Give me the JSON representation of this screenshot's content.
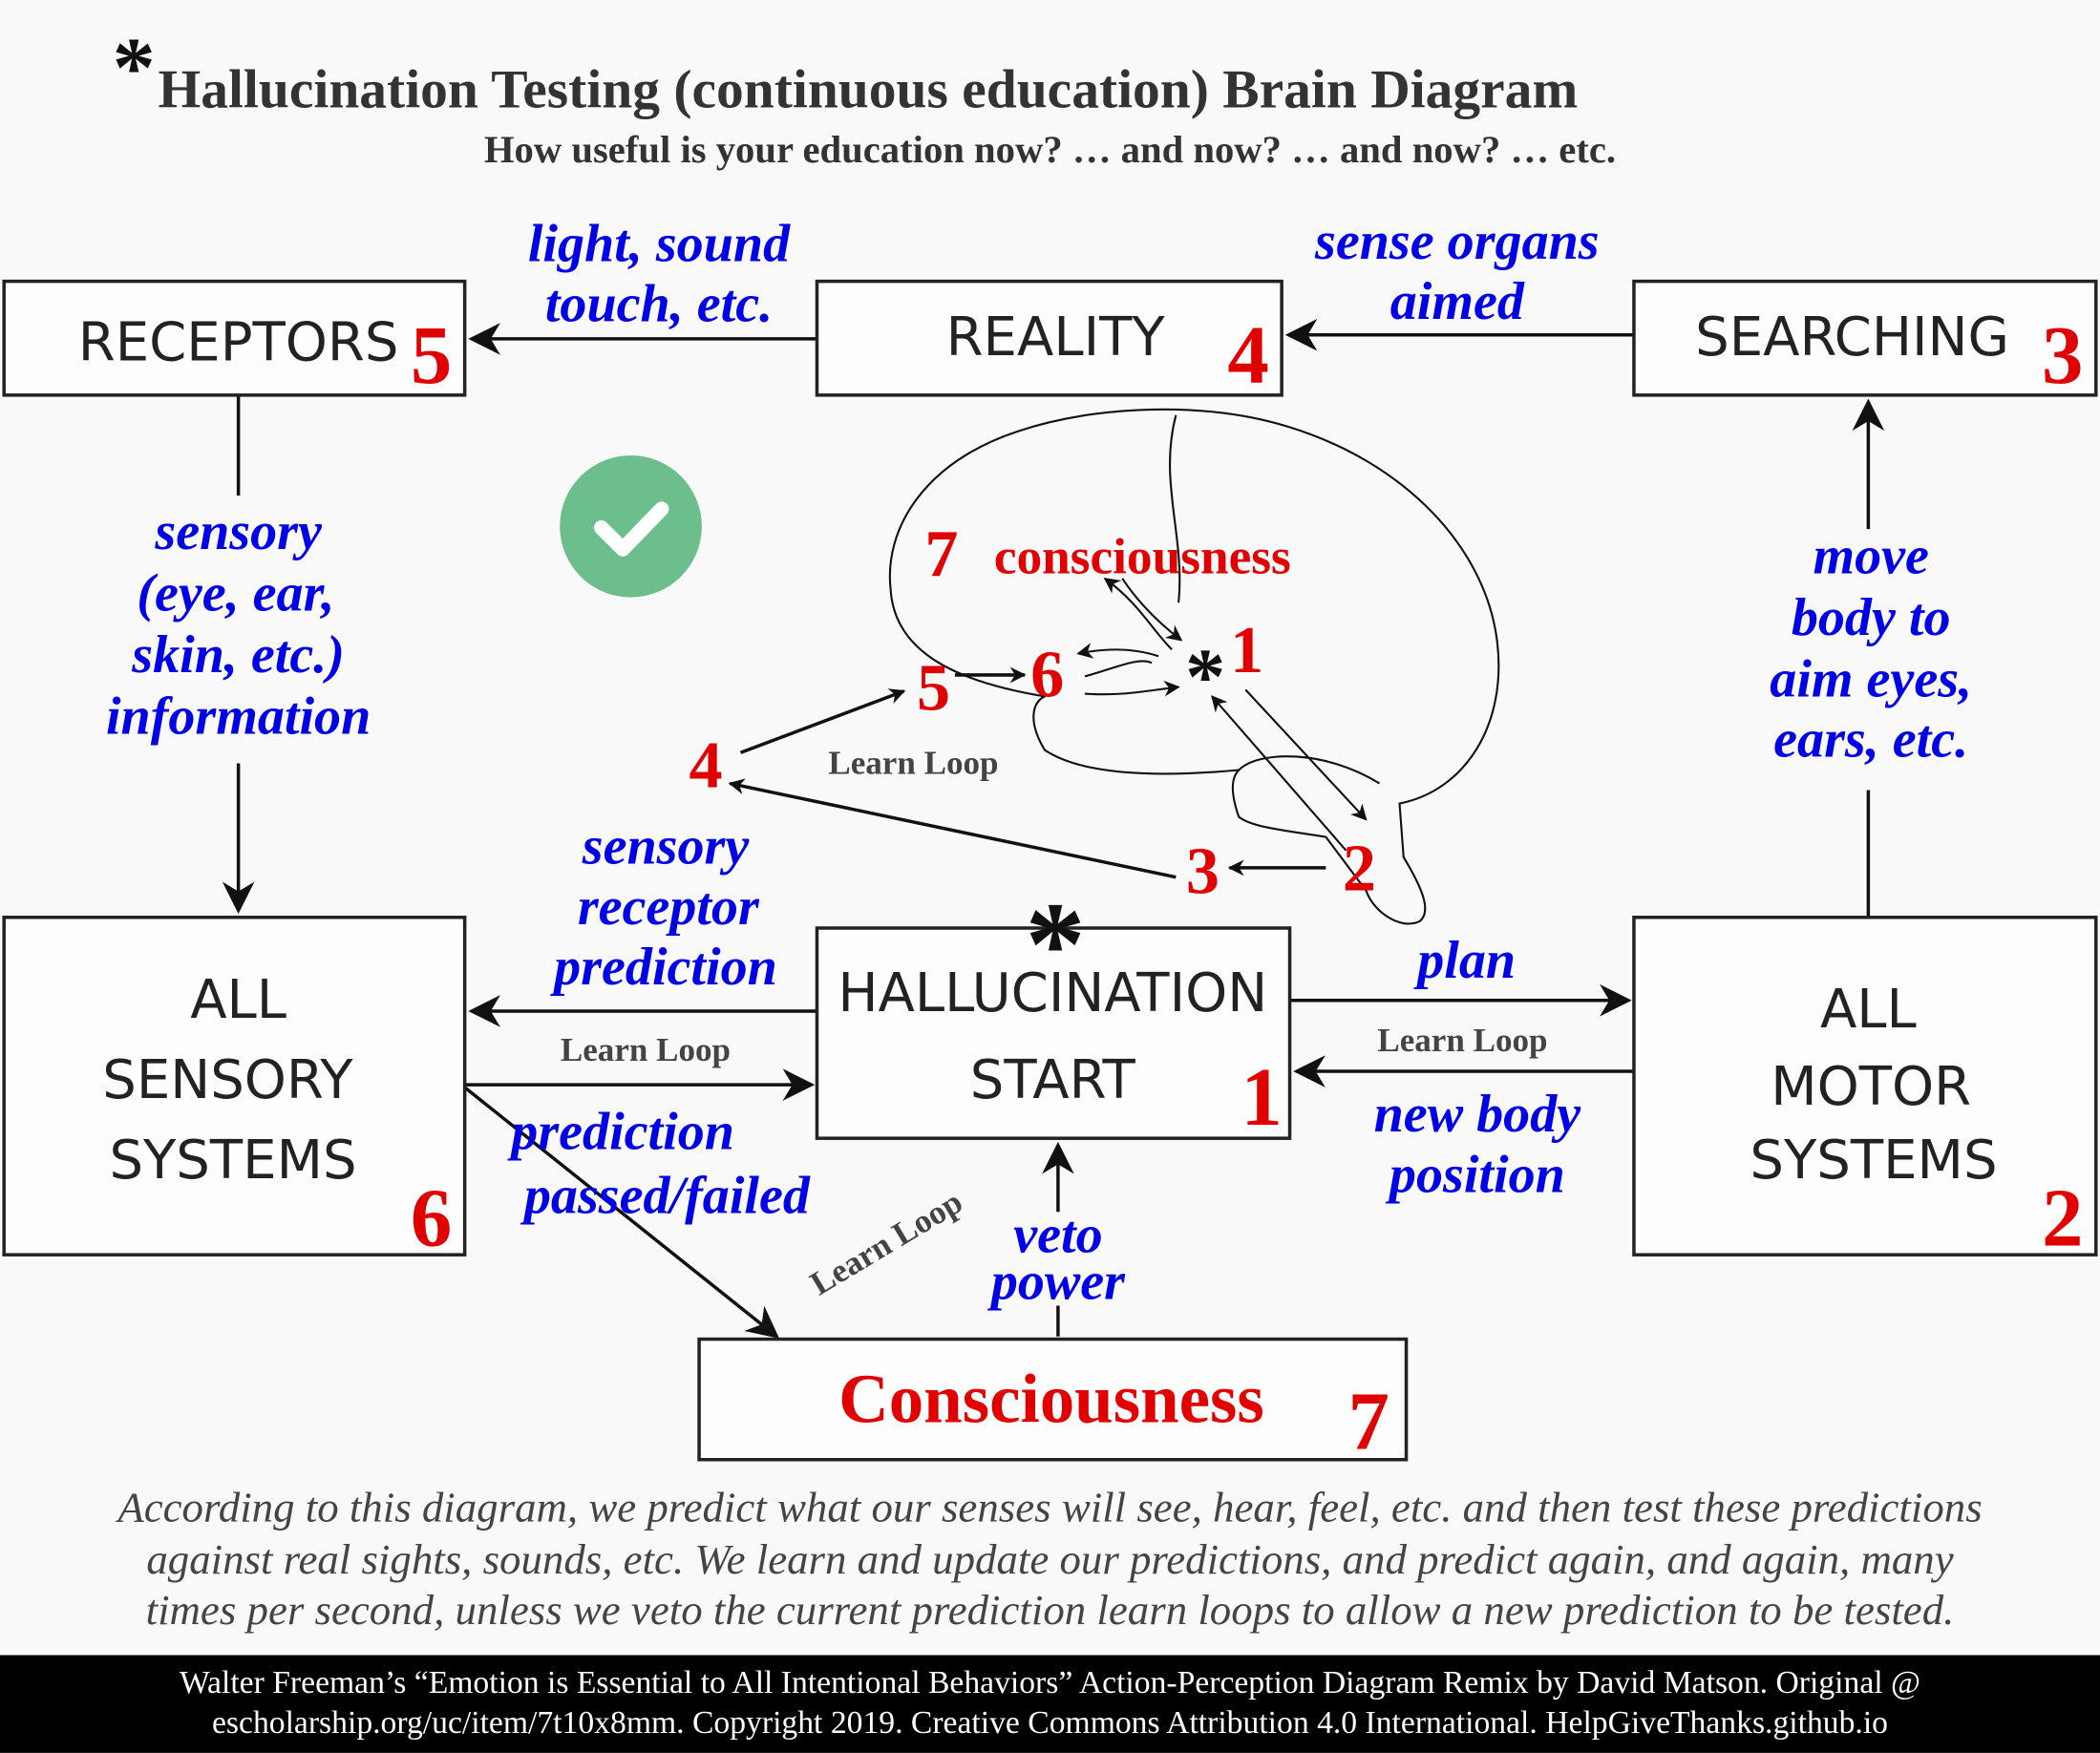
{
  "header": {
    "star": "*",
    "title": "Hallucination Testing (continuous education) Brain Diagram",
    "subtitle": "How useful is your education now? … and now? … and now?  … etc."
  },
  "nodes": [
    {
      "label": [
        "RECEPTORS"
      ],
      "number": "5"
    },
    {
      "label": [
        "REALITY"
      ],
      "number": "4"
    },
    {
      "label": [
        "SEARCHING"
      ],
      "number": "3"
    },
    {
      "label": [
        "ALL",
        "SENSORY",
        "SYSTEMS"
      ],
      "number": "6"
    },
    {
      "label": [
        "HALLUCINATION",
        "START"
      ],
      "number": "1",
      "star": "*"
    },
    {
      "label": [
        "ALL",
        "MOTOR",
        "SYSTEMS"
      ],
      "number": "2"
    },
    {
      "label": [
        "Consciousness"
      ],
      "number": "7"
    }
  ],
  "edge_labels": {
    "reality_to_receptors": [
      "light, sound",
      "touch, etc."
    ],
    "searching_to_reality": [
      "sense organs",
      "aimed"
    ],
    "receptors_to_sensory": [
      "sensory",
      "(eye, ear,",
      "skin, etc.)",
      "information"
    ],
    "motor_to_searching": [
      "move",
      "body to",
      "aim eyes,",
      "ears, etc."
    ],
    "start_to_sensory": [
      "sensory",
      "receptor",
      "prediction"
    ],
    "start_to_motor": [
      "plan"
    ],
    "motor_to_start": [
      "new body",
      "position"
    ],
    "sensory_to_consciousness": [
      "prediction",
      "passed/failed"
    ],
    "consciousness_to_start": [
      "veto",
      "power"
    ]
  },
  "learn_loops": [
    "Learn Loop",
    "Learn Loop",
    "Learn Loop",
    "Learn Loop"
  ],
  "brain": {
    "consciousness_number": "7",
    "consciousness": "consciousness",
    "star": "*",
    "numbers": [
      "1",
      "2",
      "3",
      "4",
      "5",
      "6"
    ]
  },
  "caption": [
    "According to this diagram, we predict what our senses will see, hear, feel, etc. and then test these predictions",
    "against real sights, sounds, etc.  We learn and update our predictions, and predict again, and again, many",
    "times per second, unless we veto the current prediction learn loops to allow a new prediction to be tested."
  ],
  "footer": [
    "Walter Freeman’s “Emotion is Essential to All Intentional Behaviors” Action-Perception Diagram Remix by David Matson. Original @",
    "escholarship.org/uc/item/7t10x8mm.  Copyright 2019.  Creative Commons Attribution 4.0 International.  HelpGiveThanks.github.io"
  ]
}
